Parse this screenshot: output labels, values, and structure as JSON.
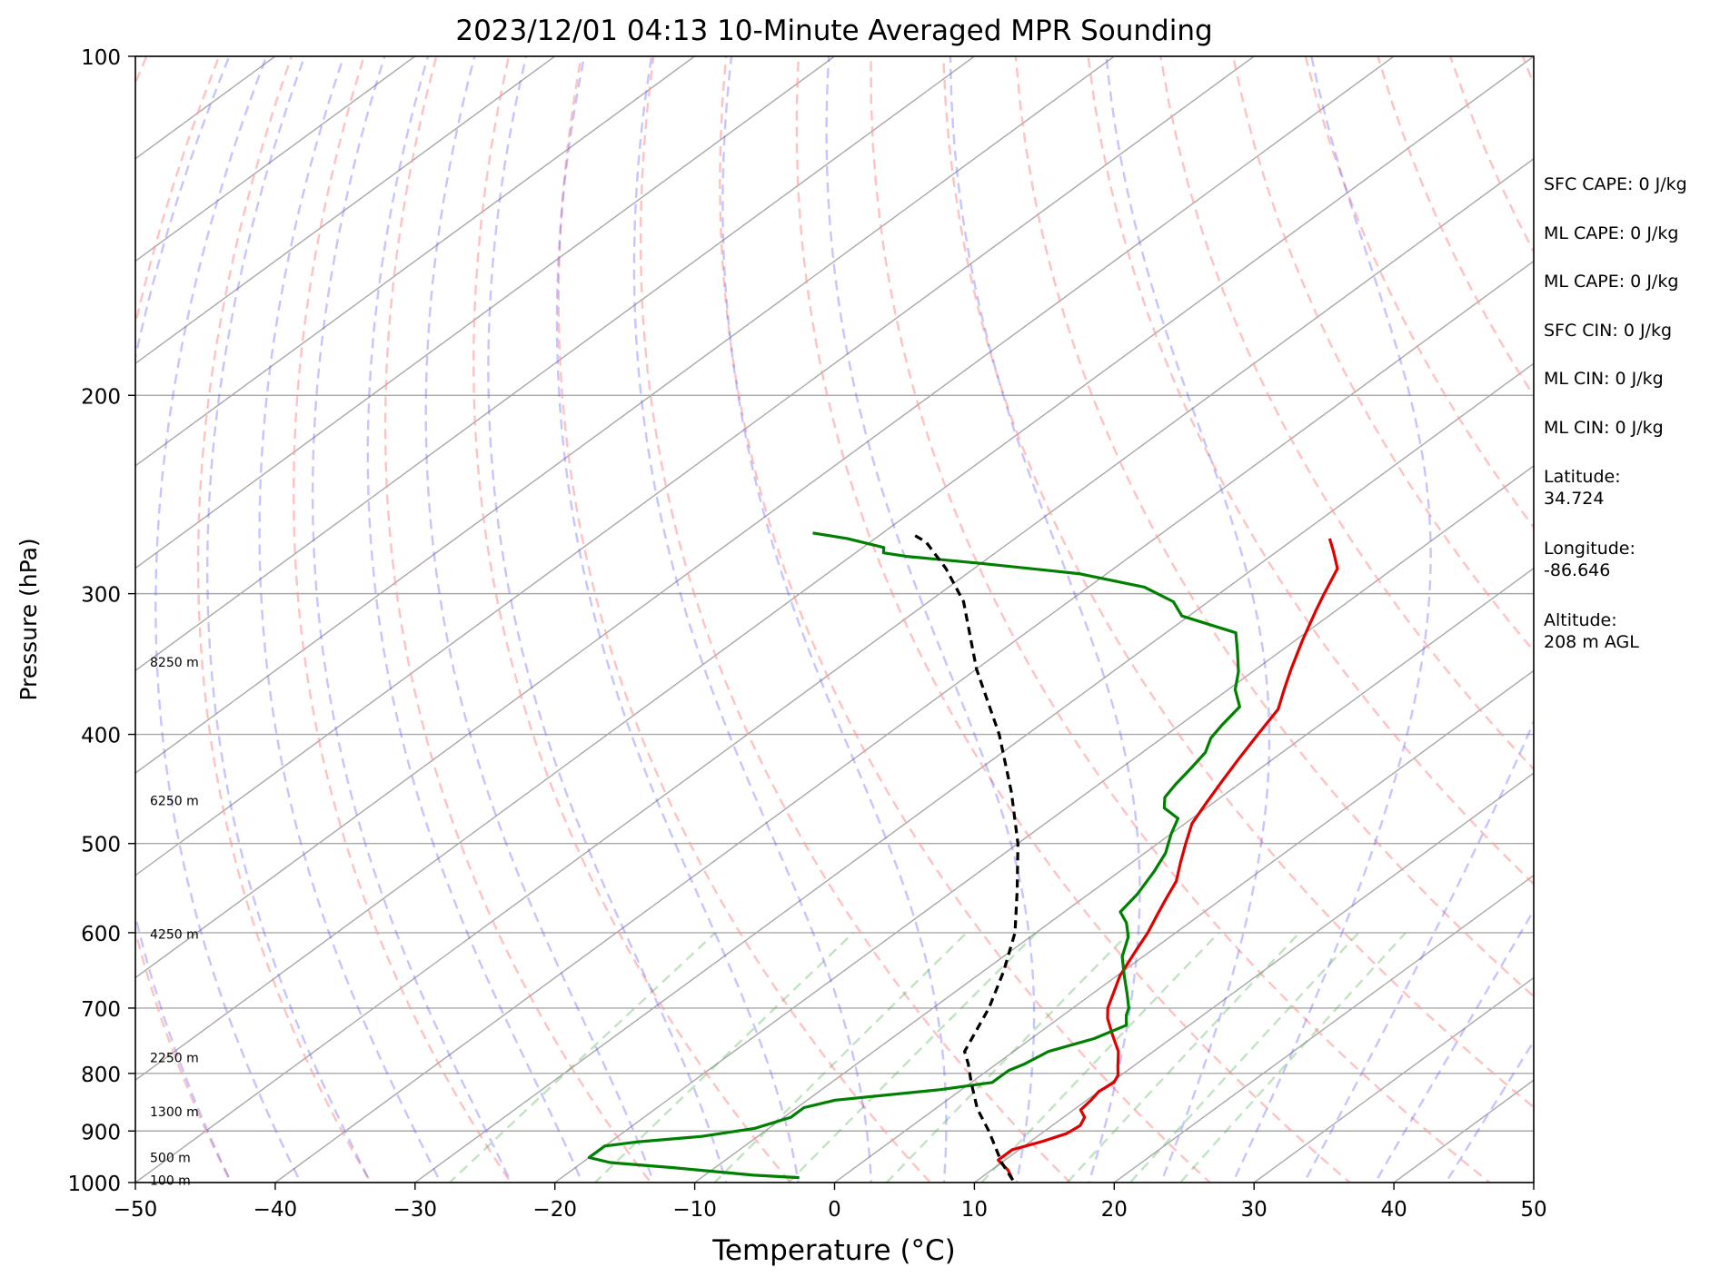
{
  "chart_data": {
    "type": "skew-t",
    "title": "2023/12/01 04:13 10-Minute Averaged MPR Sounding",
    "xlabel": "Temperature (°C)",
    "ylabel": "Pressure (hPa)",
    "xlim": [
      -50,
      50
    ],
    "ylim": [
      1000,
      100
    ],
    "y_scale": "log",
    "grid": true,
    "x_ticks": [
      "−50",
      "−40",
      "−30",
      "−20",
      "−10",
      "0",
      "10",
      "20",
      "30",
      "40",
      "50"
    ],
    "y_ticks": [
      "100",
      "200",
      "300",
      "400",
      "500",
      "600",
      "700",
      "800",
      "900",
      "1000"
    ],
    "height_labels": [
      {
        "p": 995,
        "label": "100 m"
      },
      {
        "p": 950,
        "label": "500 m"
      },
      {
        "p": 865,
        "label": "1300 m"
      },
      {
        "p": 775,
        "label": "2250 m"
      },
      {
        "p": 602,
        "label": "4250 m"
      },
      {
        "p": 458,
        "label": "6250 m"
      },
      {
        "p": 345,
        "label": "8250 m"
      }
    ],
    "series": [
      {
        "role": "temperature",
        "color": "#e00000",
        "points": [
          [
            12.5,
            995
          ],
          [
            11.2,
            975
          ],
          [
            9.5,
            955
          ],
          [
            9.5,
            935
          ],
          [
            10.8,
            920
          ],
          [
            11.8,
            905
          ],
          [
            12.0,
            890
          ],
          [
            11.5,
            875
          ],
          [
            10.5,
            862
          ],
          [
            10.3,
            845
          ],
          [
            10.0,
            830
          ],
          [
            10.2,
            815
          ],
          [
            9.8,
            803
          ],
          [
            9.0,
            790
          ],
          [
            7.5,
            765
          ],
          [
            5.5,
            740
          ],
          [
            3.5,
            715
          ],
          [
            2.5,
            700
          ],
          [
            1.5,
            680
          ],
          [
            0.2,
            655
          ],
          [
            -1.0,
            625
          ],
          [
            -2.0,
            600
          ],
          [
            -3.0,
            580
          ],
          [
            -4.0,
            560
          ],
          [
            -5.0,
            540
          ],
          [
            -6.5,
            520
          ],
          [
            -8.0,
            500
          ],
          [
            -9.5,
            480
          ],
          [
            -10.5,
            460
          ],
          [
            -11.5,
            440
          ],
          [
            -12.5,
            420
          ],
          [
            -13.5,
            400
          ],
          [
            -14.5,
            380
          ],
          [
            -16.0,
            365
          ],
          [
            -17.5,
            350
          ],
          [
            -19.5,
            330
          ],
          [
            -21.5,
            310
          ],
          [
            -22.5,
            300
          ],
          [
            -24.0,
            285
          ],
          [
            -26.0,
            275
          ],
          [
            -27.5,
            268
          ]
        ]
      },
      {
        "role": "dewpoint",
        "color": "#008000",
        "points": [
          [
            -3.0,
            990
          ],
          [
            -6.5,
            985
          ],
          [
            -13.0,
            970
          ],
          [
            -18.0,
            960
          ],
          [
            -20.0,
            950
          ],
          [
            -20.0,
            940
          ],
          [
            -20.0,
            928
          ],
          [
            -18.0,
            920
          ],
          [
            -14.0,
            910
          ],
          [
            -11.0,
            895
          ],
          [
            -9.5,
            875
          ],
          [
            -9.5,
            858
          ],
          [
            -8.0,
            845
          ],
          [
            -1.5,
            827
          ],
          [
            1.5,
            815
          ],
          [
            1.5,
            807
          ],
          [
            1.5,
            795
          ],
          [
            2.0,
            785
          ],
          [
            2.5,
            765
          ],
          [
            4.5,
            745
          ],
          [
            5.5,
            725
          ],
          [
            4.5,
            710
          ],
          [
            4.0,
            700
          ],
          [
            2.5,
            680
          ],
          [
            0.5,
            655
          ],
          [
            -1.5,
            630
          ],
          [
            -3.0,
            605
          ],
          [
            -4.5,
            588
          ],
          [
            -6.0,
            575
          ],
          [
            -6.5,
            555
          ],
          [
            -7.5,
            530
          ],
          [
            -8.5,
            510
          ],
          [
            -10.0,
            490
          ],
          [
            -11.0,
            475
          ],
          [
            -13.0,
            465
          ],
          [
            -14.0,
            455
          ],
          [
            -14.5,
            443
          ],
          [
            -15.0,
            428
          ],
          [
            -15.5,
            415
          ],
          [
            -16.5,
            403
          ],
          [
            -17.0,
            392
          ],
          [
            -17.5,
            378
          ],
          [
            -19.5,
            365
          ],
          [
            -21.0,
            352
          ],
          [
            -23.0,
            338
          ],
          [
            -25.0,
            325
          ],
          [
            -30.5,
            314
          ],
          [
            -32.5,
            305
          ],
          [
            -36.0,
            296
          ],
          [
            -42.0,
            288
          ],
          [
            -50.0,
            282
          ],
          [
            -56.0,
            278
          ],
          [
            -58.0,
            276
          ],
          [
            -58.5,
            273
          ],
          [
            -62.0,
            268
          ],
          [
            -65.0,
            265
          ]
        ]
      },
      {
        "role": "parcel",
        "color": "#000000",
        "style": "dashed",
        "points": [
          [
            12.5,
            995
          ],
          [
            10.0,
            960
          ],
          [
            6.0,
            900
          ],
          [
            3.0,
            860
          ],
          [
            0.0,
            815
          ],
          [
            -2.0,
            785
          ],
          [
            -3.5,
            765
          ],
          [
            -6.0,
            700
          ],
          [
            -8.5,
            650
          ],
          [
            -11.5,
            600
          ],
          [
            -15.5,
            550
          ],
          [
            -20.0,
            500
          ],
          [
            -25.5,
            450
          ],
          [
            -32.0,
            400
          ],
          [
            -40.0,
            350
          ],
          [
            -47.5,
            305
          ],
          [
            -52.0,
            285
          ],
          [
            -56.0,
            270
          ],
          [
            -58.0,
            265
          ]
        ]
      }
    ]
  },
  "info": [
    "SFC CAPE: 0 J/kg",
    "ML CAPE: 0 J/kg",
    "ML CAPE: 0 J/kg",
    "SFC CIN: 0 J/kg",
    "ML CIN: 0 J/kg",
    "ML CIN: 0 J/kg",
    "Latitude:\n34.724",
    "Longitude:\n-86.646",
    "Altitude:\n208 m AGL"
  ]
}
